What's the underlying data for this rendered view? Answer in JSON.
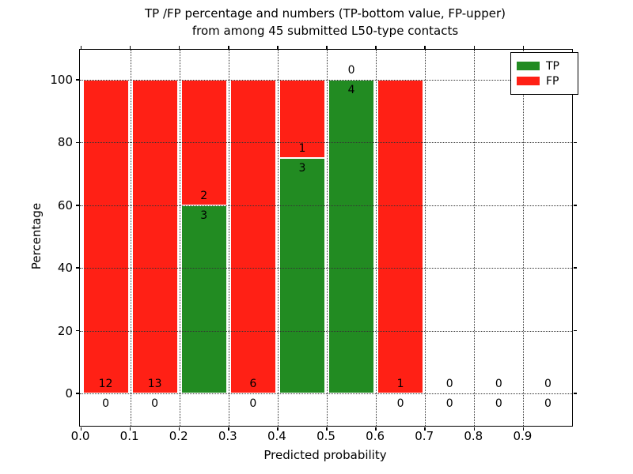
{
  "chart_data": {
    "type": "bar",
    "stacked": true,
    "title_lines": [
      "TP /FP percentage and numbers (TP-bottom value, FP-upper)",
      "from among 45 submitted L50-type contacts"
    ],
    "xlabel": "Predicted probability",
    "ylabel": "Percentage",
    "total_contacts": 45,
    "xlim": [
      0.0,
      1.0
    ],
    "ylim": [
      -10.5,
      110
    ],
    "xticks": [
      {
        "value": 0.0,
        "label": "0.0"
      },
      {
        "value": 0.1,
        "label": "0.1"
      },
      {
        "value": 0.2,
        "label": "0.2"
      },
      {
        "value": 0.3,
        "label": "0.3"
      },
      {
        "value": 0.4,
        "label": "0.4"
      },
      {
        "value": 0.5,
        "label": "0.5"
      },
      {
        "value": 0.6,
        "label": "0.6"
      },
      {
        "value": 0.7,
        "label": "0.7"
      },
      {
        "value": 0.8,
        "label": "0.8"
      },
      {
        "value": 0.9,
        "label": "0.9"
      }
    ],
    "yticks": [
      {
        "value": 0,
        "label": "0"
      },
      {
        "value": 20,
        "label": "20"
      },
      {
        "value": 40,
        "label": "40"
      },
      {
        "value": 60,
        "label": "60"
      },
      {
        "value": 80,
        "label": "80"
      },
      {
        "value": 100,
        "label": "100"
      }
    ],
    "grid": true,
    "legend": {
      "position": "upper right",
      "entries": [
        {
          "label": "TP",
          "color": "#228b22"
        },
        {
          "label": "FP",
          "color": "#ff2015"
        }
      ]
    },
    "bins": [
      {
        "range": [
          0.0,
          0.1
        ],
        "tp": 0,
        "fp": 12,
        "tp_pct": 0,
        "fp_pct": 100
      },
      {
        "range": [
          0.1,
          0.2
        ],
        "tp": 0,
        "fp": 13,
        "tp_pct": 0,
        "fp_pct": 100
      },
      {
        "range": [
          0.2,
          0.3
        ],
        "tp": 3,
        "fp": 2,
        "tp_pct": 60,
        "fp_pct": 40
      },
      {
        "range": [
          0.3,
          0.4
        ],
        "tp": 0,
        "fp": 6,
        "tp_pct": 0,
        "fp_pct": 100
      },
      {
        "range": [
          0.4,
          0.5
        ],
        "tp": 3,
        "fp": 1,
        "tp_pct": 75,
        "fp_pct": 25
      },
      {
        "range": [
          0.5,
          0.6
        ],
        "tp": 4,
        "fp": 0,
        "tp_pct": 100,
        "fp_pct": 0
      },
      {
        "range": [
          0.6,
          0.7
        ],
        "tp": 0,
        "fp": 1,
        "tp_pct": 0,
        "fp_pct": 100
      },
      {
        "range": [
          0.7,
          0.8
        ],
        "tp": 0,
        "fp": 0,
        "tp_pct": 0,
        "fp_pct": 0
      },
      {
        "range": [
          0.8,
          0.9
        ],
        "tp": 0,
        "fp": 0,
        "tp_pct": 0,
        "fp_pct": 0
      },
      {
        "range": [
          0.9,
          1.0
        ],
        "tp": 0,
        "fp": 0,
        "tp_pct": 0,
        "fp_pct": 0
      }
    ],
    "colors": {
      "tp": "#228b22",
      "fp": "#ff2015",
      "grid": "#333333",
      "axis": "#000000",
      "background": "#ffffff"
    }
  }
}
